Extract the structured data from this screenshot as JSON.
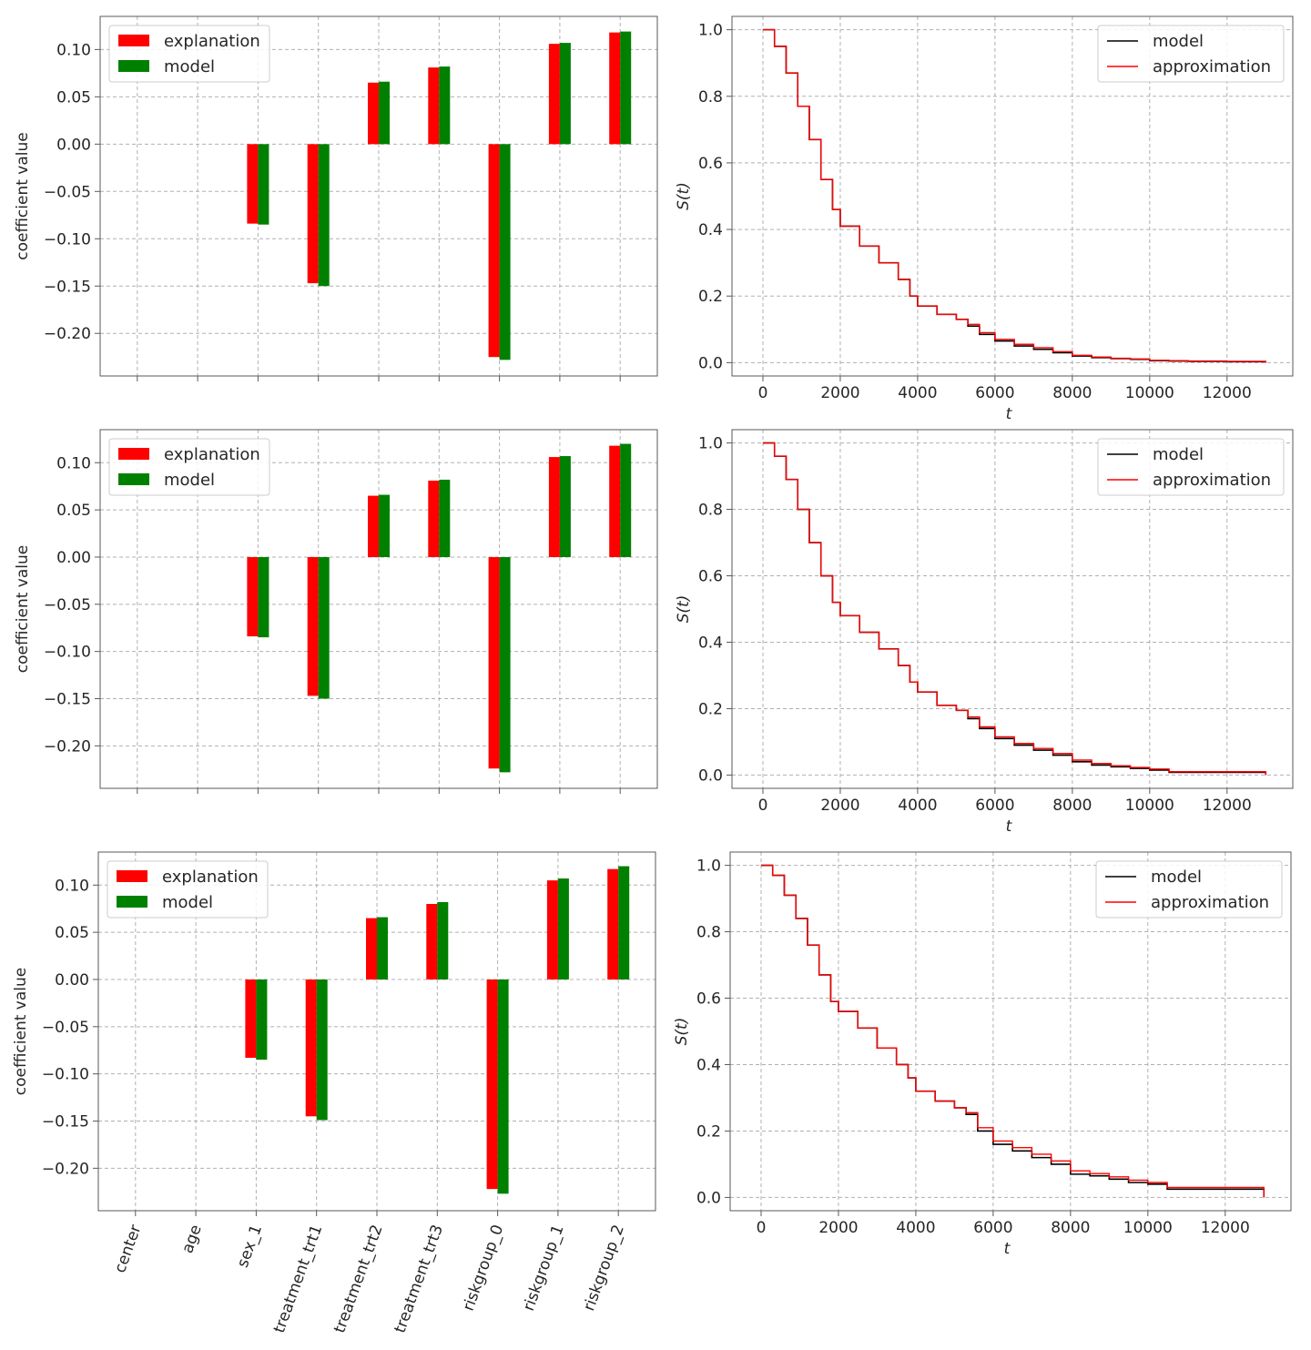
{
  "chart_data": [
    {
      "type": "bar",
      "ylabel": "coefficient value",
      "xlabel": "",
      "categories": [
        "center",
        "age",
        "sex_1",
        "treatment_trt1",
        "treatment_trt2",
        "treatment_trt3",
        "riskgroup_0",
        "riskgroup_1",
        "riskgroup_2"
      ],
      "show_category_labels": false,
      "ylim": [
        -0.245,
        0.135
      ],
      "yticks": [
        -0.2,
        -0.15,
        -0.1,
        -0.05,
        0.0,
        0.05,
        0.1
      ],
      "ytick_labels": [
        "−0.20",
        "−0.15",
        "−0.10",
        "−0.05",
        "0.00",
        "0.05",
        "0.10"
      ],
      "grid": true,
      "legend_placement": "top-left",
      "series": [
        {
          "name": "explanation",
          "color": "#ff0000",
          "values": [
            0,
            0,
            -0.084,
            -0.147,
            0.065,
            0.081,
            -0.225,
            0.106,
            0.118
          ]
        },
        {
          "name": "model",
          "color": "#008000",
          "values": [
            0,
            0,
            -0.085,
            -0.15,
            0.066,
            0.082,
            -0.228,
            0.107,
            0.119
          ]
        }
      ]
    },
    {
      "type": "line",
      "xlabel": "t",
      "ylabel": "S(t)",
      "xlim": [
        -800,
        13700
      ],
      "ylim": [
        -0.04,
        1.04
      ],
      "xticks": [
        0,
        2000,
        4000,
        6000,
        8000,
        10000,
        12000
      ],
      "xtick_labels": [
        "0",
        "2000",
        "4000",
        "6000",
        "8000",
        "10000",
        "12000"
      ],
      "yticks": [
        0.0,
        0.2,
        0.4,
        0.6,
        0.8,
        1.0
      ],
      "ytick_labels": [
        "0.0",
        "0.2",
        "0.4",
        "0.6",
        "0.8",
        "1.0"
      ],
      "grid": true,
      "legend_placement": "top-right",
      "series": [
        {
          "name": "model",
          "color": "#000000",
          "x": [
            0,
            300,
            600,
            900,
            1200,
            1500,
            1800,
            2000,
            2500,
            3000,
            3500,
            3800,
            4000,
            4500,
            5000,
            5300,
            5600,
            6000,
            6500,
            7000,
            7500,
            8000,
            8500,
            9000,
            9500,
            10000,
            10500,
            11000,
            12000,
            13000
          ],
          "y": [
            1.0,
            0.95,
            0.87,
            0.77,
            0.67,
            0.55,
            0.46,
            0.41,
            0.35,
            0.3,
            0.25,
            0.2,
            0.17,
            0.145,
            0.13,
            0.11,
            0.085,
            0.065,
            0.05,
            0.04,
            0.03,
            0.02,
            0.015,
            0.012,
            0.01,
            0.006,
            0.005,
            0.004,
            0.003,
            0.003
          ]
        },
        {
          "name": "approximation",
          "color": "#ff0000",
          "x": [
            0,
            300,
            600,
            900,
            1200,
            1500,
            1800,
            2000,
            2500,
            3000,
            3500,
            3800,
            4000,
            4500,
            5000,
            5300,
            5600,
            6000,
            6500,
            7000,
            7500,
            8000,
            8500,
            9000,
            9500,
            10000,
            10500,
            11000,
            12000,
            13000
          ],
          "y": [
            1.0,
            0.95,
            0.87,
            0.77,
            0.67,
            0.55,
            0.46,
            0.41,
            0.35,
            0.3,
            0.25,
            0.2,
            0.17,
            0.145,
            0.13,
            0.115,
            0.09,
            0.07,
            0.055,
            0.045,
            0.033,
            0.022,
            0.017,
            0.013,
            0.011,
            0.007,
            0.006,
            0.005,
            0.004,
            0.004
          ]
        }
      ]
    },
    {
      "type": "bar",
      "ylabel": "coefficient value",
      "xlabel": "",
      "categories": [
        "center",
        "age",
        "sex_1",
        "treatment_trt1",
        "treatment_trt2",
        "treatment_trt3",
        "riskgroup_0",
        "riskgroup_1",
        "riskgroup_2"
      ],
      "show_category_labels": false,
      "ylim": [
        -0.245,
        0.135
      ],
      "yticks": [
        -0.2,
        -0.15,
        -0.1,
        -0.05,
        0.0,
        0.05,
        0.1
      ],
      "ytick_labels": [
        "−0.20",
        "−0.15",
        "−0.10",
        "−0.05",
        "0.00",
        "0.05",
        "0.10"
      ],
      "grid": true,
      "legend_placement": "top-left",
      "series": [
        {
          "name": "explanation",
          "color": "#ff0000",
          "values": [
            0,
            0,
            -0.084,
            -0.147,
            0.065,
            0.081,
            -0.224,
            0.106,
            0.118
          ]
        },
        {
          "name": "model",
          "color": "#008000",
          "values": [
            0,
            0,
            -0.085,
            -0.15,
            0.066,
            0.082,
            -0.228,
            0.107,
            0.12
          ]
        }
      ]
    },
    {
      "type": "line",
      "xlabel": "t",
      "ylabel": "S(t)",
      "xlim": [
        -800,
        13700
      ],
      "ylim": [
        -0.04,
        1.04
      ],
      "xticks": [
        0,
        2000,
        4000,
        6000,
        8000,
        10000,
        12000
      ],
      "xtick_labels": [
        "0",
        "2000",
        "4000",
        "6000",
        "8000",
        "10000",
        "12000"
      ],
      "yticks": [
        0.0,
        0.2,
        0.4,
        0.6,
        0.8,
        1.0
      ],
      "ytick_labels": [
        "0.0",
        "0.2",
        "0.4",
        "0.6",
        "0.8",
        "1.0"
      ],
      "grid": true,
      "legend_placement": "top-right",
      "series": [
        {
          "name": "model",
          "color": "#000000",
          "x": [
            0,
            300,
            600,
            900,
            1200,
            1500,
            1800,
            2000,
            2500,
            3000,
            3500,
            3800,
            4000,
            4500,
            5000,
            5300,
            5600,
            6000,
            6500,
            7000,
            7500,
            8000,
            8500,
            9000,
            9500,
            10000,
            10500,
            11000,
            12000,
            13000
          ],
          "y": [
            1.0,
            0.96,
            0.89,
            0.8,
            0.7,
            0.6,
            0.52,
            0.48,
            0.43,
            0.38,
            0.33,
            0.28,
            0.25,
            0.21,
            0.195,
            0.17,
            0.14,
            0.11,
            0.09,
            0.075,
            0.06,
            0.04,
            0.03,
            0.025,
            0.02,
            0.015,
            0.008,
            0.008,
            0.008,
            0.008
          ]
        },
        {
          "name": "approximation",
          "color": "#ff0000",
          "x": [
            0,
            300,
            600,
            900,
            1200,
            1500,
            1800,
            2000,
            2500,
            3000,
            3500,
            3800,
            4000,
            4500,
            5000,
            5300,
            5600,
            6000,
            6500,
            7000,
            7500,
            8000,
            8500,
            9000,
            9500,
            10000,
            10500,
            11000,
            12000,
            13000
          ],
          "y": [
            1.0,
            0.96,
            0.89,
            0.8,
            0.7,
            0.6,
            0.52,
            0.48,
            0.43,
            0.38,
            0.33,
            0.28,
            0.25,
            0.21,
            0.195,
            0.175,
            0.145,
            0.115,
            0.095,
            0.08,
            0.065,
            0.045,
            0.035,
            0.028,
            0.023,
            0.018,
            0.01,
            0.01,
            0.01,
            0.01
          ]
        }
      ]
    },
    {
      "type": "bar",
      "ylabel": "coefficient value",
      "xlabel": "",
      "categories": [
        "center",
        "age",
        "sex_1",
        "treatment_trt1",
        "treatment_trt2",
        "treatment_trt3",
        "riskgroup_0",
        "riskgroup_1",
        "riskgroup_2"
      ],
      "show_category_labels": true,
      "ylim": [
        -0.245,
        0.135
      ],
      "yticks": [
        -0.2,
        -0.15,
        -0.1,
        -0.05,
        0.0,
        0.05,
        0.1
      ],
      "ytick_labels": [
        "−0.20",
        "−0.15",
        "−0.10",
        "−0.05",
        "0.00",
        "0.05",
        "0.10"
      ],
      "grid": true,
      "legend_placement": "top-left",
      "series": [
        {
          "name": "explanation",
          "color": "#ff0000",
          "values": [
            0,
            0,
            -0.083,
            -0.145,
            0.065,
            0.08,
            -0.222,
            0.105,
            0.117
          ]
        },
        {
          "name": "model",
          "color": "#008000",
          "values": [
            0,
            0,
            -0.085,
            -0.149,
            0.066,
            0.082,
            -0.227,
            0.107,
            0.12
          ]
        }
      ]
    },
    {
      "type": "line",
      "xlabel": "t",
      "ylabel": "S(t)",
      "xlim": [
        -800,
        13700
      ],
      "ylim": [
        -0.04,
        1.04
      ],
      "xticks": [
        0,
        2000,
        4000,
        6000,
        8000,
        10000,
        12000
      ],
      "xtick_labels": [
        "0",
        "2000",
        "4000",
        "6000",
        "8000",
        "10000",
        "12000"
      ],
      "yticks": [
        0.0,
        0.2,
        0.4,
        0.6,
        0.8,
        1.0
      ],
      "ytick_labels": [
        "0.0",
        "0.2",
        "0.4",
        "0.6",
        "0.8",
        "1.0"
      ],
      "grid": true,
      "legend_placement": "top-right",
      "series": [
        {
          "name": "model",
          "color": "#000000",
          "x": [
            0,
            300,
            600,
            900,
            1200,
            1500,
            1800,
            2000,
            2500,
            3000,
            3500,
            3800,
            4000,
            4500,
            5000,
            5300,
            5600,
            6000,
            6500,
            7000,
            7500,
            8000,
            8500,
            9000,
            9500,
            10000,
            10500,
            11000,
            12000,
            13000
          ],
          "y": [
            1.0,
            0.97,
            0.91,
            0.84,
            0.76,
            0.67,
            0.59,
            0.56,
            0.51,
            0.45,
            0.4,
            0.36,
            0.32,
            0.29,
            0.27,
            0.25,
            0.2,
            0.16,
            0.14,
            0.12,
            0.1,
            0.07,
            0.065,
            0.055,
            0.045,
            0.04,
            0.025,
            0.025,
            0.025,
            0.025
          ]
        },
        {
          "name": "approximation",
          "color": "#ff0000",
          "x": [
            0,
            300,
            600,
            900,
            1200,
            1500,
            1800,
            2000,
            2500,
            3000,
            3500,
            3800,
            4000,
            4500,
            5000,
            5300,
            5600,
            6000,
            6500,
            7000,
            7500,
            8000,
            8500,
            9000,
            9500,
            10000,
            10500,
            11000,
            12000,
            13000
          ],
          "y": [
            1.0,
            0.97,
            0.91,
            0.84,
            0.76,
            0.67,
            0.59,
            0.56,
            0.51,
            0.45,
            0.4,
            0.36,
            0.32,
            0.29,
            0.27,
            0.255,
            0.21,
            0.17,
            0.15,
            0.13,
            0.11,
            0.08,
            0.072,
            0.062,
            0.052,
            0.045,
            0.03,
            0.03,
            0.03,
            0.03
          ]
        }
      ]
    }
  ]
}
